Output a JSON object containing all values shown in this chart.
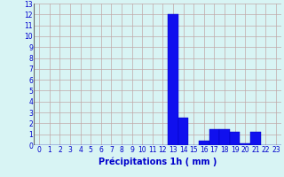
{
  "hours": [
    0,
    1,
    2,
    3,
    4,
    5,
    6,
    7,
    8,
    9,
    10,
    11,
    12,
    13,
    14,
    15,
    16,
    17,
    18,
    19,
    20,
    21,
    22,
    23
  ],
  "values": [
    0,
    0,
    0,
    0,
    0,
    0,
    0,
    0,
    0,
    0,
    0,
    0,
    0,
    12.0,
    2.5,
    0,
    0.4,
    1.5,
    1.5,
    1.2,
    0.2,
    1.2,
    0,
    0
  ],
  "bar_color": "#1010ee",
  "bar_edge_color": "#0000bb",
  "background_color": "#d8f4f4",
  "grid_color": "#c0a8a8",
  "text_color": "#0000cc",
  "xlabel": "Précipitations 1h ( mm )",
  "ylim": [
    0,
    13
  ],
  "yticks": [
    0,
    1,
    2,
    3,
    4,
    5,
    6,
    7,
    8,
    9,
    10,
    11,
    12,
    13
  ],
  "xticks": [
    0,
    1,
    2,
    3,
    4,
    5,
    6,
    7,
    8,
    9,
    10,
    11,
    12,
    13,
    14,
    15,
    16,
    17,
    18,
    19,
    20,
    21,
    22,
    23
  ],
  "tick_fontsize": 5.5,
  "label_fontsize": 7
}
